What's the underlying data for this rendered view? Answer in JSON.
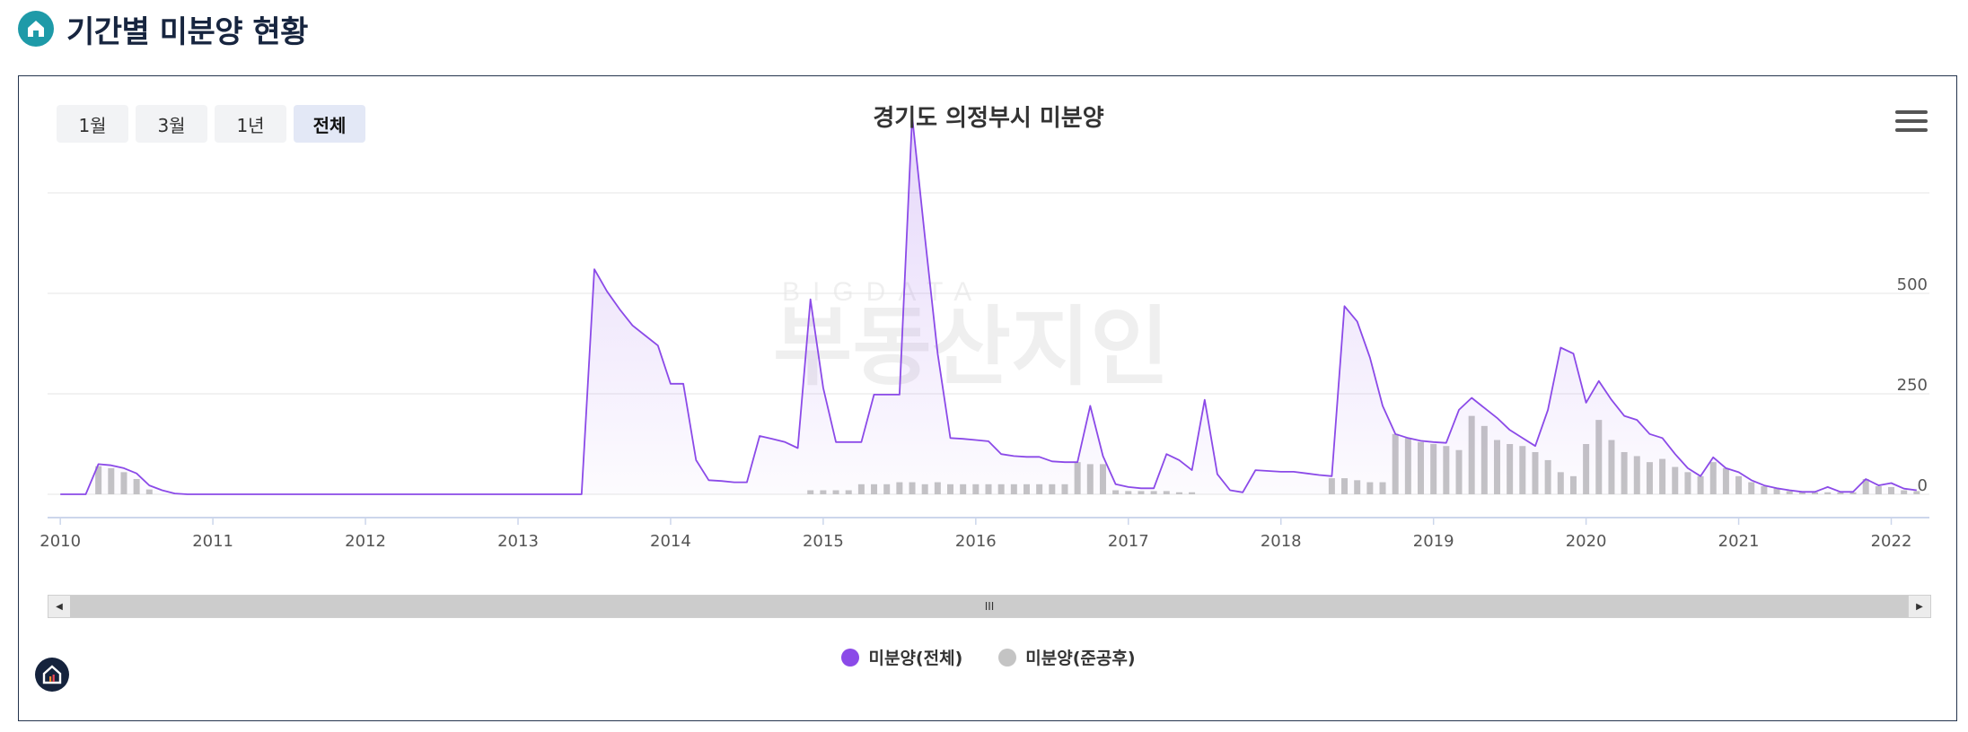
{
  "header": {
    "title": "기간별 미분양 현황",
    "logo_icon": "home-icon"
  },
  "range_buttons": [
    "1월",
    "3월",
    "1년",
    "전체"
  ],
  "active_range": "전체",
  "colors": {
    "total": "#8b4ae8",
    "completed": "#c4c4c4",
    "grid": "#e6e6e6",
    "axis": "#ccd6eb",
    "panel_border": "#24344d",
    "accent": "#1e9aa8"
  },
  "watermark": {
    "small": "BIGDATA",
    "big": "부동산지인"
  },
  "scroll": {
    "grip": "III",
    "left_icon": "◀",
    "right_icon": "▶"
  },
  "chart_data": {
    "type": "line",
    "title": "경기도 의정부시 미분양",
    "xlabel": "",
    "ylabel": "",
    "xlim": [
      "2009-12",
      "2022-04"
    ],
    "ylim": [
      0,
      750
    ],
    "y_ticks": [
      0,
      250,
      500
    ],
    "x_tick_labels": [
      "2010",
      "2011",
      "2012",
      "2013",
      "2014",
      "2015",
      "2016",
      "2017",
      "2018",
      "2019",
      "2020",
      "2021",
      "2022"
    ],
    "grid": true,
    "legend_position": "bottom-center",
    "series": [
      {
        "name": "미분양(전체)",
        "type": "area",
        "points": [
          [
            "2010-01",
            0
          ],
          [
            "2010-02",
            0
          ],
          [
            "2010-03",
            0
          ],
          [
            "2010-04",
            75
          ],
          [
            "2010-05",
            72
          ],
          [
            "2010-06",
            65
          ],
          [
            "2010-07",
            52
          ],
          [
            "2010-08",
            22
          ],
          [
            "2010-09",
            10
          ],
          [
            "2010-10",
            2
          ],
          [
            "2010-11",
            0
          ],
          [
            "2011-06",
            0
          ],
          [
            "2012-06",
            0
          ],
          [
            "2013-06",
            0
          ],
          [
            "2013-07",
            560
          ],
          [
            "2013-08",
            505
          ],
          [
            "2013-09",
            460
          ],
          [
            "2013-10",
            420
          ],
          [
            "2013-11",
            395
          ],
          [
            "2013-12",
            370
          ],
          [
            "2014-01",
            275
          ],
          [
            "2014-02",
            275
          ],
          [
            "2014-03",
            85
          ],
          [
            "2014-04",
            35
          ],
          [
            "2014-05",
            33
          ],
          [
            "2014-06",
            30
          ],
          [
            "2014-07",
            30
          ],
          [
            "2014-08",
            145
          ],
          [
            "2014-09",
            138
          ],
          [
            "2014-10",
            130
          ],
          [
            "2014-11",
            115
          ],
          [
            "2014-12",
            485
          ],
          [
            "2015-01",
            265
          ],
          [
            "2015-02",
            130
          ],
          [
            "2015-03",
            130
          ],
          [
            "2015-04",
            130
          ],
          [
            "2015-05",
            248
          ],
          [
            "2015-06",
            248
          ],
          [
            "2015-07",
            248
          ],
          [
            "2015-08",
            940
          ],
          [
            "2015-09",
            640
          ],
          [
            "2015-10",
            350
          ],
          [
            "2015-11",
            140
          ],
          [
            "2015-12",
            138
          ],
          [
            "2016-01",
            135
          ],
          [
            "2016-02",
            132
          ],
          [
            "2016-03",
            100
          ],
          [
            "2016-04",
            95
          ],
          [
            "2016-05",
            93
          ],
          [
            "2016-06",
            93
          ],
          [
            "2016-07",
            82
          ],
          [
            "2016-08",
            80
          ],
          [
            "2016-09",
            80
          ],
          [
            "2016-10",
            220
          ],
          [
            "2016-11",
            95
          ],
          [
            "2016-12",
            25
          ],
          [
            "2017-01",
            18
          ],
          [
            "2017-02",
            15
          ],
          [
            "2017-03",
            15
          ],
          [
            "2017-04",
            100
          ],
          [
            "2017-05",
            85
          ],
          [
            "2017-06",
            60
          ],
          [
            "2017-07",
            235
          ],
          [
            "2017-08",
            50
          ],
          [
            "2017-09",
            10
          ],
          [
            "2017-10",
            5
          ],
          [
            "2017-11",
            60
          ],
          [
            "2017-12",
            58
          ],
          [
            "2018-01",
            56
          ],
          [
            "2018-02",
            56
          ],
          [
            "2018-03",
            52
          ],
          [
            "2018-04",
            48
          ],
          [
            "2018-05",
            45
          ],
          [
            "2018-06",
            468
          ],
          [
            "2018-07",
            430
          ],
          [
            "2018-08",
            340
          ],
          [
            "2018-09",
            220
          ],
          [
            "2018-10",
            150
          ],
          [
            "2018-11",
            140
          ],
          [
            "2018-12",
            133
          ],
          [
            "2019-01",
            130
          ],
          [
            "2019-02",
            128
          ],
          [
            "2019-03",
            210
          ],
          [
            "2019-04",
            240
          ],
          [
            "2019-05",
            215
          ],
          [
            "2019-06",
            190
          ],
          [
            "2019-07",
            160
          ],
          [
            "2019-08",
            140
          ],
          [
            "2019-09",
            120
          ],
          [
            "2019-10",
            210
          ],
          [
            "2019-11",
            365
          ],
          [
            "2019-12",
            350
          ],
          [
            "2020-01",
            228
          ],
          [
            "2020-02",
            282
          ],
          [
            "2020-03",
            235
          ],
          [
            "2020-04",
            195
          ],
          [
            "2020-05",
            185
          ],
          [
            "2020-06",
            150
          ],
          [
            "2020-07",
            140
          ],
          [
            "2020-08",
            100
          ],
          [
            "2020-09",
            65
          ],
          [
            "2020-10",
            45
          ],
          [
            "2020-11",
            92
          ],
          [
            "2020-12",
            65
          ],
          [
            "2021-01",
            55
          ],
          [
            "2021-02",
            35
          ],
          [
            "2021-03",
            22
          ],
          [
            "2021-04",
            15
          ],
          [
            "2021-05",
            10
          ],
          [
            "2021-06",
            6
          ],
          [
            "2021-07",
            6
          ],
          [
            "2021-08",
            18
          ],
          [
            "2021-09",
            6
          ],
          [
            "2021-10",
            6
          ],
          [
            "2021-11",
            38
          ],
          [
            "2021-12",
            22
          ],
          [
            "2022-01",
            28
          ],
          [
            "2022-02",
            14
          ],
          [
            "2022-03",
            10
          ]
        ]
      },
      {
        "name": "미분양(준공후)",
        "type": "column",
        "points": [
          [
            "2010-04",
            70
          ],
          [
            "2010-05",
            65
          ],
          [
            "2010-06",
            55
          ],
          [
            "2010-07",
            38
          ],
          [
            "2010-08",
            12
          ],
          [
            "2014-12",
            10
          ],
          [
            "2015-01",
            10
          ],
          [
            "2015-02",
            10
          ],
          [
            "2015-03",
            10
          ],
          [
            "2015-04",
            25
          ],
          [
            "2015-05",
            25
          ],
          [
            "2015-06",
            25
          ],
          [
            "2015-07",
            30
          ],
          [
            "2015-08",
            30
          ],
          [
            "2015-09",
            25
          ],
          [
            "2015-10",
            30
          ],
          [
            "2015-11",
            25
          ],
          [
            "2015-12",
            25
          ],
          [
            "2016-01",
            25
          ],
          [
            "2016-02",
            25
          ],
          [
            "2016-03",
            25
          ],
          [
            "2016-04",
            25
          ],
          [
            "2016-05",
            25
          ],
          [
            "2016-06",
            25
          ],
          [
            "2016-07",
            25
          ],
          [
            "2016-08",
            25
          ],
          [
            "2016-09",
            80
          ],
          [
            "2016-10",
            75
          ],
          [
            "2016-11",
            75
          ],
          [
            "2016-12",
            10
          ],
          [
            "2017-01",
            8
          ],
          [
            "2017-02",
            8
          ],
          [
            "2017-03",
            8
          ],
          [
            "2017-04",
            8
          ],
          [
            "2017-05",
            5
          ],
          [
            "2017-06",
            5
          ],
          [
            "2018-05",
            40
          ],
          [
            "2018-06",
            40
          ],
          [
            "2018-07",
            35
          ],
          [
            "2018-08",
            30
          ],
          [
            "2018-09",
            30
          ],
          [
            "2018-10",
            150
          ],
          [
            "2018-11",
            140
          ],
          [
            "2018-12",
            130
          ],
          [
            "2019-01",
            125
          ],
          [
            "2019-02",
            120
          ],
          [
            "2019-03",
            110
          ],
          [
            "2019-04",
            195
          ],
          [
            "2019-05",
            170
          ],
          [
            "2019-06",
            135
          ],
          [
            "2019-07",
            125
          ],
          [
            "2019-08",
            120
          ],
          [
            "2019-09",
            105
          ],
          [
            "2019-10",
            85
          ],
          [
            "2019-11",
            55
          ],
          [
            "2019-12",
            45
          ],
          [
            "2020-01",
            125
          ],
          [
            "2020-02",
            185
          ],
          [
            "2020-03",
            135
          ],
          [
            "2020-04",
            105
          ],
          [
            "2020-05",
            95
          ],
          [
            "2020-06",
            80
          ],
          [
            "2020-07",
            88
          ],
          [
            "2020-08",
            68
          ],
          [
            "2020-09",
            55
          ],
          [
            "2020-10",
            45
          ],
          [
            "2020-11",
            80
          ],
          [
            "2020-12",
            65
          ],
          [
            "2021-01",
            45
          ],
          [
            "2021-02",
            30
          ],
          [
            "2021-03",
            20
          ],
          [
            "2021-04",
            15
          ],
          [
            "2021-05",
            8
          ],
          [
            "2021-06",
            5
          ],
          [
            "2021-07",
            5
          ],
          [
            "2021-08",
            5
          ],
          [
            "2021-09",
            5
          ],
          [
            "2021-10",
            5
          ],
          [
            "2021-11",
            38
          ],
          [
            "2021-12",
            20
          ],
          [
            "2022-01",
            18
          ],
          [
            "2022-02",
            10
          ],
          [
            "2022-03",
            8
          ]
        ]
      }
    ]
  }
}
